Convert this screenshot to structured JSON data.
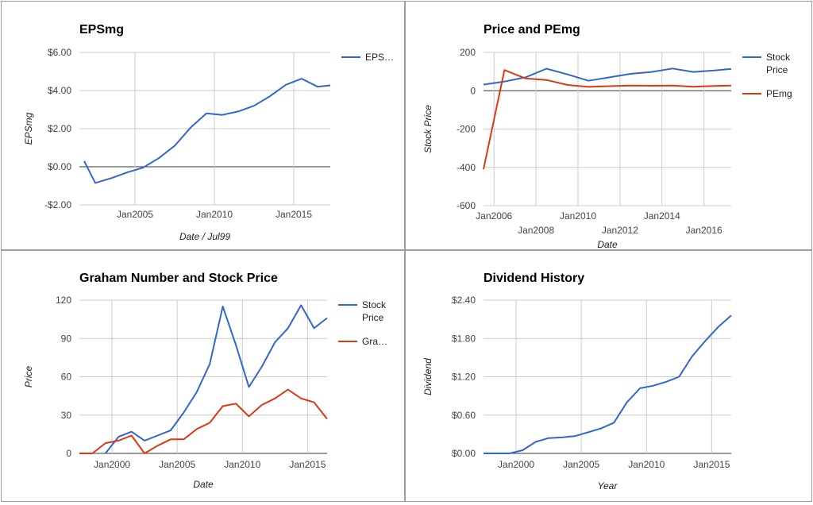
{
  "chart_data": [
    {
      "type": "line",
      "title": "EPSmg",
      "xlabel": "Date / Jul99",
      "ylabel": "EPSmg",
      "ylim": [
        -2,
        6
      ],
      "yticks": [
        6,
        4,
        2,
        0,
        -2
      ],
      "yticklabels": [
        "$6.00",
        "$4.00",
        "$2.00",
        "$0.00",
        "-$2.00"
      ],
      "xlim": [
        2001.5,
        2017.3
      ],
      "xticks": [
        {
          "value": 2005,
          "label": "Jan2005",
          "row": 0
        },
        {
          "value": 2010,
          "label": "Jan2010",
          "row": 0
        },
        {
          "value": 2015,
          "label": "Jan2015",
          "row": 0
        }
      ],
      "grid": true,
      "legend": "right",
      "series": [
        {
          "name": "EPS…",
          "color": "#3366cc",
          "x": [
            2001.8,
            2002.5,
            2003.5,
            2004.5,
            2005.5,
            2006.5,
            2007.5,
            2008.5,
            2009.5,
            2010.5,
            2011.5,
            2012.5,
            2013.5,
            2014.5,
            2015.5,
            2016.5,
            2017.3
          ],
          "y": [
            0.3,
            -0.85,
            -0.6,
            -0.3,
            -0.05,
            0.45,
            1.1,
            2.05,
            2.8,
            2.72,
            2.9,
            3.2,
            3.7,
            4.3,
            4.62,
            4.2,
            4.27
          ]
        }
      ]
    },
    {
      "type": "line",
      "title": "Price and PEmg",
      "xlabel": "Date",
      "ylabel": "Stock Price",
      "ylim": [
        -600,
        200
      ],
      "yticks": [
        200,
        0,
        -200,
        -400,
        -600
      ],
      "yticklabels": [
        "200",
        "0",
        "-200",
        "-400",
        "-600"
      ],
      "xlim": [
        2005.5,
        2017.3
      ],
      "xticks": [
        {
          "value": 2006,
          "label": "Jan2006",
          "row": 0
        },
        {
          "value": 2008,
          "label": "Jan2008",
          "row": 1
        },
        {
          "value": 2010,
          "label": "Jan2010",
          "row": 0
        },
        {
          "value": 2012,
          "label": "Jan2012",
          "row": 1
        },
        {
          "value": 2014,
          "label": "Jan2014",
          "row": 0
        },
        {
          "value": 2016,
          "label": "Jan2016",
          "row": 1
        }
      ],
      "grid": true,
      "legend": "right",
      "series": [
        {
          "name": "Stock Price",
          "legend_lines": [
            "Stock",
            "Price"
          ],
          "color": "#3366cc",
          "x": [
            2005.5,
            2006.5,
            2007.5,
            2008.5,
            2009.5,
            2010.5,
            2011.5,
            2012.5,
            2013.5,
            2014.5,
            2015.5,
            2016.5,
            2017.3
          ],
          "y": [
            32,
            48,
            70,
            115,
            85,
            52,
            70,
            88,
            98,
            116,
            98,
            106,
            114
          ]
        },
        {
          "name": "PEmg",
          "legend_lines": [
            "PEmg"
          ],
          "color": "#dc3912",
          "x": [
            2005.5,
            2006.5,
            2007.5,
            2008.5,
            2009.5,
            2010.5,
            2011.5,
            2012.5,
            2013.5,
            2014.5,
            2015.5,
            2016.5,
            2017.3
          ],
          "y": [
            -410,
            108,
            64,
            56,
            30,
            20,
            24,
            27,
            26,
            27,
            21,
            25,
            27
          ]
        }
      ]
    },
    {
      "type": "line",
      "title": "Graham Number and Stock Price",
      "xlabel": "Date",
      "ylabel": "Price",
      "ylim": [
        0,
        120
      ],
      "yticks": [
        120,
        90,
        60,
        30,
        0
      ],
      "yticklabels": [
        "120",
        "90",
        "60",
        "30",
        "0"
      ],
      "xlim": [
        1997.5,
        2016.5
      ],
      "xticks": [
        {
          "value": 2000,
          "label": "Jan2000",
          "row": 0
        },
        {
          "value": 2005,
          "label": "Jan2005",
          "row": 0
        },
        {
          "value": 2010,
          "label": "Jan2010",
          "row": 0
        },
        {
          "value": 2015,
          "label": "Jan2015",
          "row": 0
        }
      ],
      "grid": true,
      "legend": "right",
      "series": [
        {
          "name": "Stock Price",
          "legend_lines": [
            "Stock",
            "Price"
          ],
          "color": "#3366cc",
          "x": [
            1999.5,
            2000.5,
            2001.5,
            2002.5,
            2003.5,
            2004.5,
            2005.5,
            2006.5,
            2007.5,
            2008.5,
            2009.5,
            2010.5,
            2011.5,
            2012.5,
            2013.5,
            2014.5,
            2015.5,
            2016.5
          ],
          "y": [
            0,
            13,
            17,
            10,
            14,
            18,
            32,
            48,
            70,
            115,
            85,
            52,
            68,
            87,
            98,
            116,
            98,
            106
          ]
        },
        {
          "name": "Gra…",
          "legend_lines": [
            "Gra…"
          ],
          "color": "#dc3912",
          "x": [
            1997.5,
            1998.5,
            1999.5,
            2000.5,
            2001.5,
            2002.5,
            2003.5,
            2004.5,
            2005.5,
            2006.5,
            2007.5,
            2008.5,
            2009.5,
            2010.5,
            2011.5,
            2012.5,
            2013.5,
            2014.5,
            2015.5,
            2016.5
          ],
          "y": [
            0,
            0,
            8,
            10,
            14,
            0,
            6,
            11,
            11,
            19,
            24,
            37,
            39,
            29,
            38,
            43,
            50,
            43,
            40,
            27
          ]
        }
      ]
    },
    {
      "type": "line",
      "title": "Dividend History",
      "xlabel": "Year",
      "ylabel": "Dividend",
      "ylim": [
        0,
        2.4
      ],
      "yticks": [
        2.4,
        1.8,
        1.2,
        0.6,
        0
      ],
      "yticklabels": [
        "$2.40",
        "$1.80",
        "$1.20",
        "$0.60",
        "$0.00"
      ],
      "xlim": [
        1997.5,
        2016.5
      ],
      "xticks": [
        {
          "value": 2000,
          "label": "Jan2000",
          "row": 0
        },
        {
          "value": 2005,
          "label": "Jan2005",
          "row": 0
        },
        {
          "value": 2010,
          "label": "Jan2010",
          "row": 0
        },
        {
          "value": 2015,
          "label": "Jan2015",
          "row": 0
        }
      ],
      "grid": true,
      "legend": "none",
      "series": [
        {
          "name": "",
          "color": "#3366cc",
          "x": [
            1997.5,
            1998.5,
            1999.5,
            2000.5,
            2001.5,
            2002.5,
            2003.5,
            2004.5,
            2005.5,
            2006.5,
            2007.5,
            2008.5,
            2009.5,
            2010.5,
            2011.5,
            2012.5,
            2013.5,
            2014.5,
            2015.5,
            2016.5
          ],
          "y": [
            0,
            0,
            0,
            0.05,
            0.18,
            0.24,
            0.25,
            0.27,
            0.33,
            0.39,
            0.48,
            0.8,
            1.02,
            1.06,
            1.12,
            1.2,
            1.52,
            1.76,
            1.98,
            2.16
          ]
        }
      ]
    }
  ]
}
